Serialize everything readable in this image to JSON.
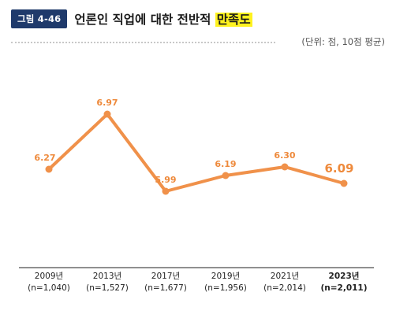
{
  "header": {
    "figure_badge": "그림 4-46",
    "title_main": "언론인 직업에 대한 전반적 ",
    "title_highlight": "만족도",
    "unit_note": "(단위: 점, 10점 평균)"
  },
  "colors": {
    "line": "#f0914a",
    "label": "#ee8a3c",
    "badge": "#1f3a6b",
    "highlight": "#fff21f",
    "axis": "#222222"
  },
  "chart_data": {
    "type": "line",
    "title": "언론인 직업에 대한 전반적 만족도",
    "unit": "(단위: 점, 10점 평균)",
    "categories": [
      "2009년",
      "2013년",
      "2017년",
      "2019년",
      "2021년",
      "2023년"
    ],
    "sample_sizes": [
      "(n=1,040)",
      "(n=1,527)",
      "(n=1,677)",
      "(n=1,956)",
      "(n=2,014)",
      "(n=2,011)"
    ],
    "values": [
      6.27,
      6.97,
      5.99,
      6.19,
      6.3,
      6.09
    ],
    "value_labels": [
      "6.27",
      "6.97",
      "5.99",
      "6.19",
      "6.30",
      "6.09"
    ],
    "emphasized_index": 5,
    "grid": false,
    "legend": "none"
  }
}
